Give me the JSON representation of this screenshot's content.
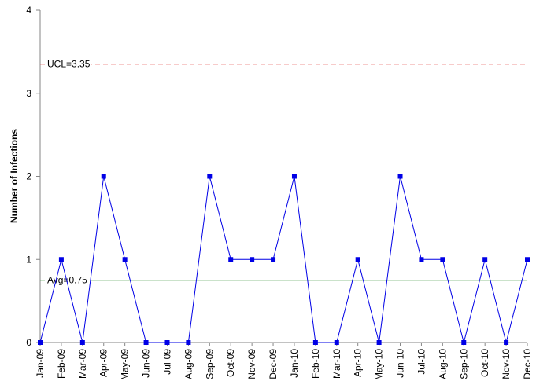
{
  "chart_data": {
    "type": "line",
    "title": "",
    "xlabel": "",
    "ylabel": "Number of Infections",
    "ylim": [
      0,
      4
    ],
    "yticks": [
      "0",
      "1",
      "2",
      "3",
      "4"
    ],
    "grid": false,
    "categories": [
      "Jan-09",
      "Feb-09",
      "Mar-09",
      "Apr-09",
      "May-09",
      "Jun-09",
      "Jul-09",
      "Aug-09",
      "Sep-09",
      "Oct-09",
      "Nov-09",
      "Dec-09",
      "Jan-10",
      "Feb-10",
      "Mar-10",
      "Apr-10",
      "May-10",
      "Jun-10",
      "Jul-10",
      "Aug-10",
      "Sep-10",
      "Oct-10",
      "Nov-10",
      "Dec-10"
    ],
    "series": [
      {
        "values": [
          0,
          1,
          0,
          2,
          1,
          0,
          0,
          0,
          2,
          1,
          1,
          1,
          2,
          0,
          0,
          1,
          0,
          2,
          1,
          1,
          0,
          1,
          0,
          1
        ]
      }
    ],
    "reference_lines": [
      {
        "label": "UCL=3.35",
        "value": 3.35,
        "color": "#e0302a",
        "style": "dashed"
      },
      {
        "label": "Avg=0.75",
        "value": 0.75,
        "color": "#2e8b2e",
        "style": "solid"
      }
    ],
    "colors": {
      "series": "#0000e6",
      "axis": "#868686"
    }
  }
}
